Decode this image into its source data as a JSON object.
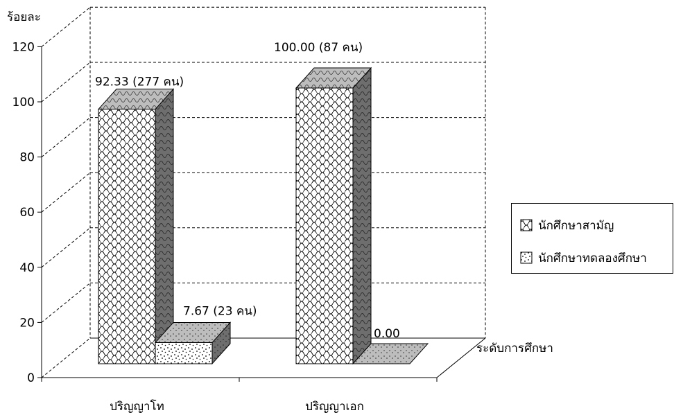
{
  "chart_data": {
    "type": "bar",
    "ylabel": "ร้อยละ",
    "xlabel": "ระดับการศึกษา",
    "ylim": [
      0,
      120
    ],
    "yticks": [
      0,
      20,
      40,
      60,
      80,
      100,
      120
    ],
    "grid": true,
    "three_d": true,
    "legend_position": "right",
    "categories": [
      "ปริญญาโท",
      "ปริญญาเอก"
    ],
    "series": [
      {
        "name": "นักศึกษาสามัญ",
        "values": [
          92.33,
          100.0
        ],
        "labels": [
          "92.33 (277 คน)",
          "100.00 (87 คน)"
        ],
        "pattern": "scale"
      },
      {
        "name": "นักศึกษาทดลองศึกษา",
        "values": [
          7.67,
          0.0
        ],
        "labels": [
          "7.67 (23 คน)",
          "0.00"
        ],
        "pattern": "dots"
      }
    ]
  }
}
